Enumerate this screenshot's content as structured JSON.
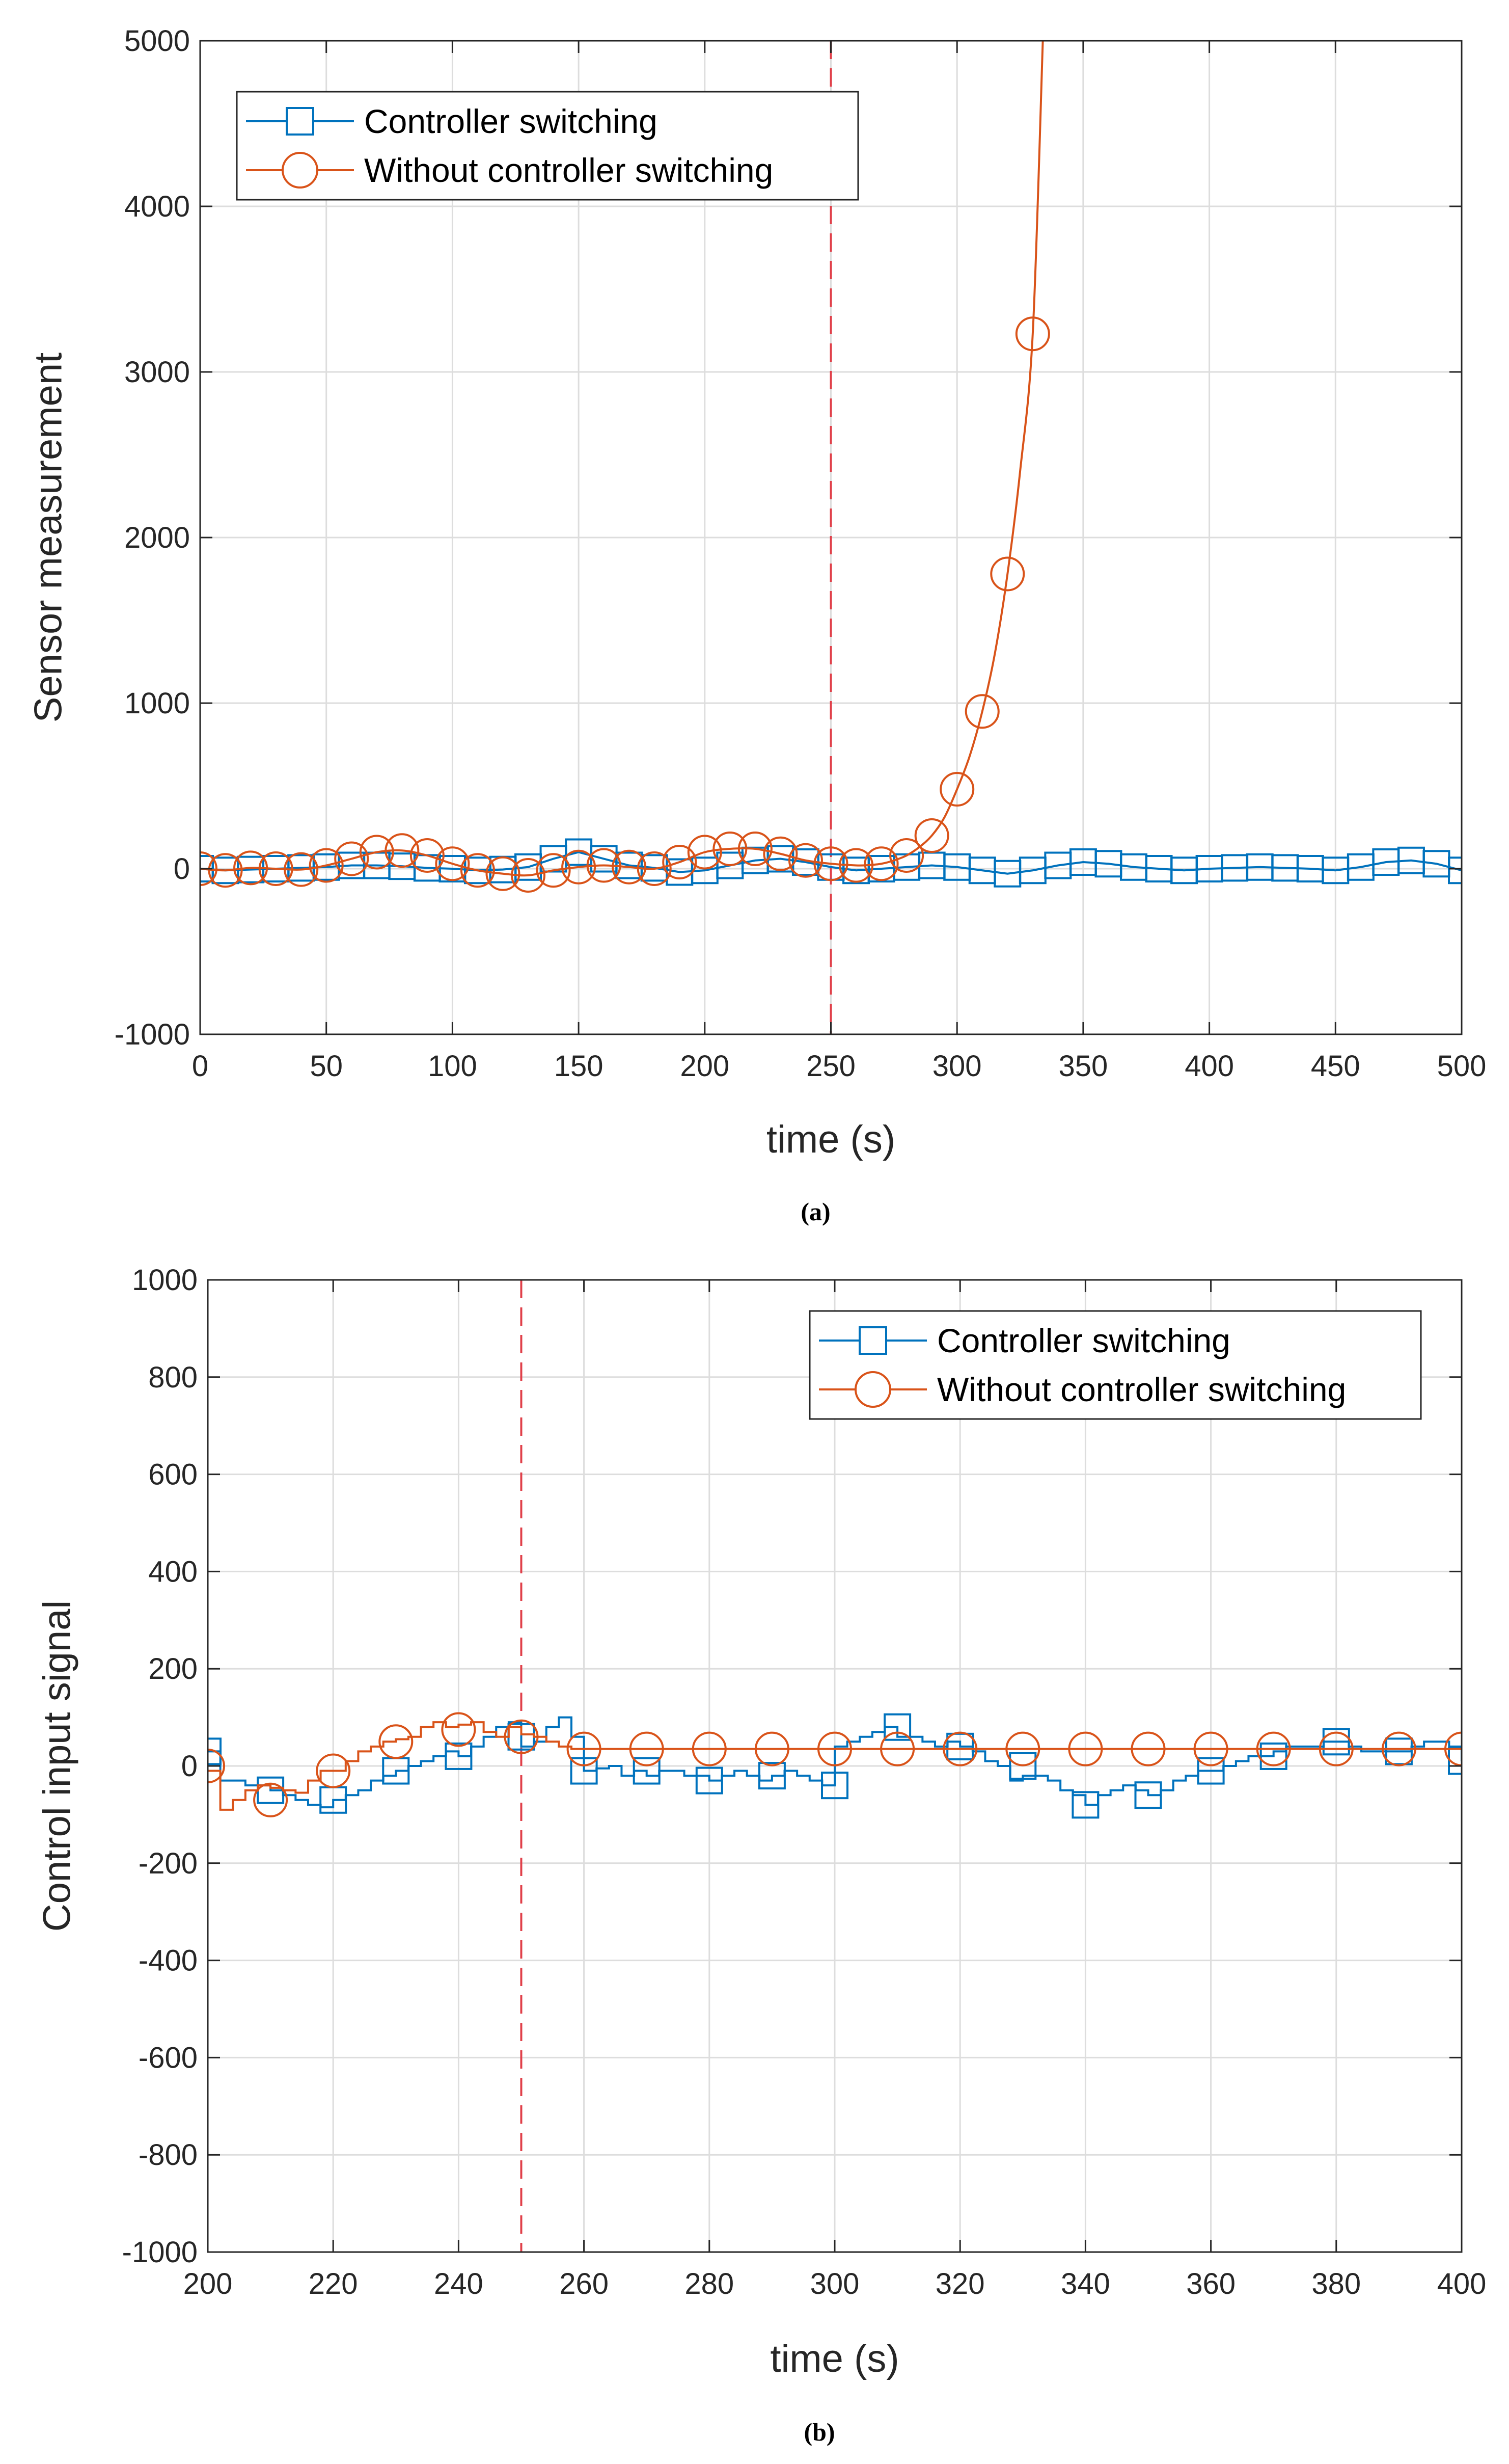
{
  "colors": {
    "switching": "#0072BD",
    "without": "#D95319",
    "attack": "#E0404A",
    "grid": "#DDDDDD",
    "axis": "#262626"
  },
  "chart_data": [
    {
      "type": "line",
      "panel": "a",
      "caption": "(a)",
      "xlabel": "time (s)",
      "ylabel": "Sensor measurement",
      "xlim": [
        0,
        500
      ],
      "ylim": [
        -1000,
        5000
      ],
      "xticks": [
        0,
        50,
        100,
        150,
        200,
        250,
        300,
        350,
        400,
        450,
        500
      ],
      "xtick_labels": [
        "0",
        "50",
        "100",
        "150",
        "200",
        "250",
        "300",
        "350",
        "400",
        "450",
        "500"
      ],
      "yticks": [
        -1000,
        0,
        1000,
        2000,
        3000,
        4000,
        5000
      ],
      "ytick_labels": [
        "-1000",
        "0",
        "1000",
        "2000",
        "3000",
        "4000",
        "5000"
      ],
      "grid": true,
      "legend_position": "top-left",
      "vline_x": 250,
      "series": [
        {
          "name": "Controller switching",
          "color": "#0072BD",
          "marker": "square",
          "step": false,
          "x": [
            0,
            10,
            20,
            30,
            40,
            50,
            60,
            70,
            80,
            90,
            100,
            110,
            120,
            130,
            140,
            150,
            160,
            170,
            180,
            190,
            200,
            210,
            220,
            230,
            240,
            250,
            260,
            270,
            280,
            290,
            300,
            310,
            320,
            330,
            340,
            350,
            360,
            370,
            380,
            390,
            400,
            410,
            420,
            430,
            440,
            450,
            460,
            470,
            480,
            490,
            500
          ],
          "y": [
            0,
            -10,
            -5,
            0,
            5,
            10,
            20,
            20,
            15,
            5,
            0,
            -10,
            -5,
            10,
            60,
            100,
            60,
            20,
            5,
            -20,
            -10,
            20,
            50,
            60,
            40,
            10,
            -10,
            0,
            10,
            20,
            10,
            -10,
            -30,
            -10,
            20,
            40,
            30,
            10,
            0,
            -10,
            0,
            5,
            10,
            5,
            0,
            -10,
            10,
            40,
            50,
            30,
            -10
          ]
        },
        {
          "name": "Without controller switching",
          "color": "#D95319",
          "marker": "circle",
          "step": false,
          "marker_x": [
            0,
            10,
            20,
            30,
            40,
            50,
            60,
            70,
            80,
            90,
            100,
            110,
            120,
            130,
            140,
            150,
            160,
            170,
            180,
            190,
            200,
            210,
            220,
            230,
            240,
            250,
            260,
            270,
            280,
            290,
            300,
            310,
            320,
            330
          ],
          "marker_y": [
            0,
            -10,
            5,
            0,
            -5,
            20,
            60,
            100,
            110,
            80,
            30,
            -10,
            -30,
            -40,
            -10,
            10,
            20,
            10,
            0,
            40,
            100,
            120,
            120,
            90,
            50,
            30,
            20,
            30,
            80,
            200,
            480,
            950,
            1780,
            3230
          ],
          "curve_x": [
            0,
            10,
            20,
            30,
            40,
            50,
            60,
            70,
            80,
            90,
            100,
            110,
            120,
            130,
            140,
            150,
            160,
            170,
            180,
            190,
            200,
            210,
            220,
            230,
            240,
            250,
            260,
            265,
            270,
            275,
            280,
            285,
            290,
            295,
            300,
            305,
            310,
            315,
            320,
            325,
            330,
            334
          ],
          "curve_y": [
            0,
            -10,
            5,
            0,
            -5,
            20,
            60,
            100,
            110,
            80,
            30,
            -10,
            -30,
            -40,
            -10,
            10,
            20,
            10,
            0,
            40,
            100,
            120,
            120,
            90,
            50,
            30,
            20,
            22,
            30,
            50,
            80,
            130,
            200,
            310,
            480,
            680,
            950,
            1300,
            1780,
            2400,
            3230,
            5000
          ]
        }
      ]
    },
    {
      "type": "line",
      "panel": "b",
      "caption": "(b)",
      "xlabel": "time (s)",
      "ylabel": "Control input signal",
      "xlim": [
        200,
        400
      ],
      "ylim": [
        -1000,
        1000
      ],
      "xticks": [
        200,
        220,
        240,
        260,
        280,
        300,
        320,
        340,
        360,
        380,
        400
      ],
      "xtick_labels": [
        "200",
        "220",
        "240",
        "260",
        "280",
        "300",
        "320",
        "340",
        "360",
        "380",
        "400"
      ],
      "yticks": [
        -1000,
        -800,
        -600,
        -400,
        -200,
        0,
        200,
        400,
        600,
        800,
        1000
      ],
      "ytick_labels": [
        "-1000",
        "-800",
        "-600",
        "-400",
        "-200",
        "0",
        "200",
        "400",
        "600",
        "800",
        "1000"
      ],
      "grid": true,
      "legend_position": "top-right",
      "vline_x": 250,
      "series": [
        {
          "name": "Controller switching",
          "color": "#0072BD",
          "marker": "square",
          "step": true,
          "x": [
            200,
            202,
            204,
            206,
            208,
            210,
            212,
            214,
            216,
            218,
            220,
            222,
            224,
            226,
            228,
            230,
            232,
            234,
            236,
            238,
            240,
            242,
            244,
            246,
            248,
            250,
            252,
            254,
            256,
            258,
            260,
            262,
            264,
            266,
            268,
            270,
            272,
            274,
            276,
            278,
            280,
            282,
            284,
            286,
            288,
            290,
            292,
            294,
            296,
            298,
            300,
            302,
            304,
            306,
            308,
            310,
            312,
            314,
            316,
            318,
            320,
            322,
            324,
            326,
            328,
            330,
            332,
            334,
            336,
            338,
            340,
            342,
            344,
            346,
            348,
            350,
            352,
            354,
            356,
            358,
            360,
            362,
            364,
            366,
            368,
            370,
            372,
            374,
            376,
            378,
            380,
            382,
            384,
            386,
            388,
            390,
            392,
            394,
            396,
            398,
            400
          ],
          "y": [
            30,
            -30,
            -30,
            -40,
            -40,
            -50,
            -60,
            -70,
            -80,
            -85,
            -70,
            -60,
            -50,
            -30,
            -20,
            -10,
            0,
            10,
            20,
            30,
            20,
            40,
            60,
            80,
            90,
            40,
            50,
            80,
            100,
            60,
            -10,
            -5,
            0,
            -20,
            -10,
            -20,
            -10,
            -10,
            -20,
            -20,
            -30,
            -20,
            -10,
            -20,
            -30,
            -20,
            -10,
            -20,
            -30,
            -40,
            40,
            50,
            60,
            70,
            80,
            60,
            60,
            50,
            40,
            50,
            40,
            30,
            10,
            0,
            -30,
            -20,
            -20,
            -30,
            -50,
            -60,
            -80,
            -60,
            -50,
            -40,
            -50,
            -60,
            -50,
            -30,
            -20,
            -10,
            -10,
            0,
            10,
            20,
            20,
            30,
            40,
            40,
            40,
            50,
            50,
            40,
            30,
            30,
            30,
            30,
            40,
            50,
            50,
            40,
            10
          ],
          "marker_x": [
            200,
            210,
            220,
            230,
            240,
            250,
            260,
            270,
            280,
            290,
            300,
            310,
            320,
            330,
            340,
            350,
            360,
            370,
            380,
            390,
            400
          ],
          "marker_y": [
            30,
            -50,
            -70,
            -10,
            20,
            60,
            -10,
            -10,
            -30,
            -20,
            -40,
            80,
            40,
            0,
            -80,
            -60,
            -10,
            20,
            50,
            30,
            10
          ]
        },
        {
          "name": "Without controller switching",
          "color": "#D95319",
          "marker": "circle",
          "step": true,
          "x": [
            200,
            202,
            204,
            206,
            208,
            210,
            212,
            214,
            216,
            218,
            220,
            222,
            224,
            226,
            228,
            230,
            232,
            234,
            236,
            238,
            240,
            242,
            244,
            246,
            248,
            250,
            252,
            254,
            256,
            258,
            260,
            400
          ],
          "y": [
            -10,
            -90,
            -70,
            -50,
            -40,
            -45,
            -50,
            -55,
            -30,
            -10,
            -10,
            10,
            30,
            40,
            50,
            55,
            60,
            80,
            90,
            80,
            85,
            90,
            70,
            60,
            80,
            65,
            60,
            50,
            40,
            35,
            35,
            35
          ],
          "marker_x": [
            200,
            210,
            220,
            230,
            240,
            250,
            260,
            270,
            280,
            290,
            300,
            310,
            320,
            330,
            340,
            350,
            360,
            370,
            380,
            390,
            400
          ],
          "marker_y": [
            0,
            -70,
            -10,
            50,
            75,
            60,
            35,
            35,
            35,
            35,
            35,
            35,
            35,
            35,
            35,
            35,
            35,
            35,
            35,
            35,
            35
          ]
        }
      ]
    }
  ]
}
